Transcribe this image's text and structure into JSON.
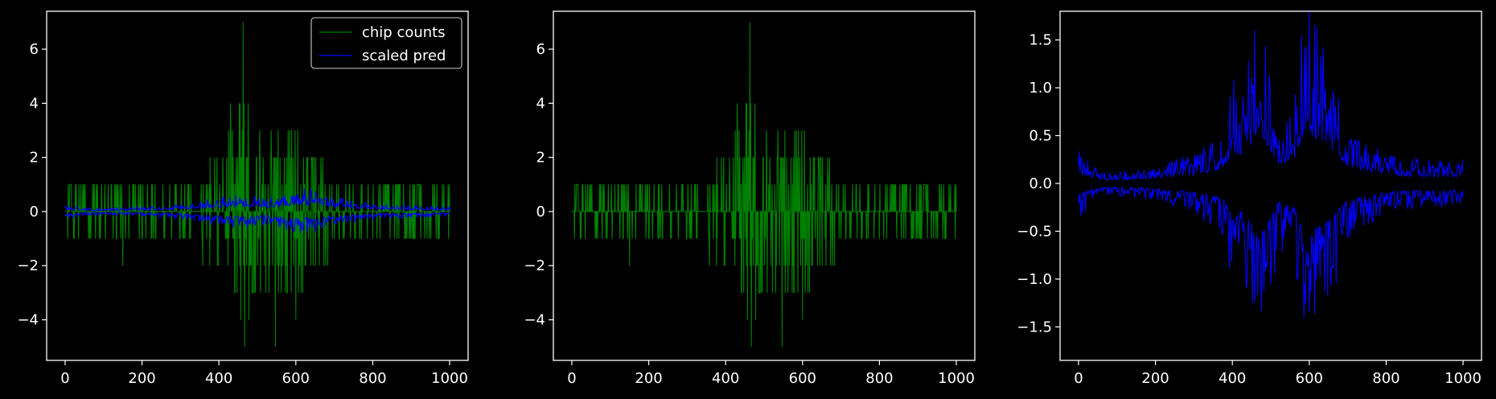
{
  "figure": {
    "background": "#000000",
    "axis_color": "#ffffff",
    "text_color": "#ffffff"
  },
  "chart_data": [
    {
      "type": "line",
      "panel": "left",
      "xlim": [
        -48,
        1048
      ],
      "ylim": [
        -5.5,
        7.4
      ],
      "xticks": [
        0,
        200,
        400,
        600,
        800,
        1000
      ],
      "yticks": [
        -4,
        -2,
        0,
        2,
        4,
        6
      ],
      "grid": false,
      "legend": {
        "placement": "top-right",
        "entries": [
          {
            "label": "chip counts",
            "color": "#008000"
          },
          {
            "label": "scaled pred",
            "color": "#0000ff"
          }
        ]
      },
      "series": [
        {
          "name": "chip counts",
          "color": "#008000",
          "style": "spiky-integer",
          "x_range": [
            0,
            1000
          ],
          "envelope_points": [
            0,
            100,
            200,
            300,
            380,
            430,
            460,
            500,
            550,
            600,
            650,
            700,
            800,
            900,
            1000
          ],
          "envelope_values": [
            1,
            1,
            1,
            1,
            1.5,
            3,
            4,
            3,
            3,
            3,
            2,
            1,
            1,
            1,
            1
          ],
          "spikes": [
            {
              "x": 463,
              "y": 7
            },
            {
              "x": 467,
              "y": -5
            },
            {
              "x": 547,
              "y": -5
            },
            {
              "x": 430,
              "y": 4
            },
            {
              "x": 600,
              "y": -4
            },
            {
              "x": 150,
              "y": -2
            }
          ]
        },
        {
          "name": "scaled pred",
          "color": "#0000ff",
          "style": "mirrored-noise",
          "x_range": [
            0,
            1000
          ],
          "envelope_points": [
            0,
            50,
            100,
            200,
            300,
            380,
            430,
            470,
            520,
            560,
            600,
            640,
            700,
            800,
            900,
            1000
          ],
          "envelope_values": [
            0.22,
            0.12,
            0.1,
            0.15,
            0.22,
            0.4,
            0.5,
            0.55,
            0.4,
            0.5,
            0.75,
            0.65,
            0.45,
            0.25,
            0.18,
            0.15
          ]
        }
      ]
    },
    {
      "type": "line",
      "panel": "middle",
      "xlim": [
        -48,
        1048
      ],
      "ylim": [
        -5.5,
        7.4
      ],
      "xticks": [
        0,
        200,
        400,
        600,
        800,
        1000
      ],
      "yticks": [
        -4,
        -2,
        0,
        2,
        4,
        6
      ],
      "grid": false,
      "series": [
        {
          "color": "#008000",
          "style": "spiky-integer",
          "x_range": [
            0,
            1000
          ],
          "envelope_points": [
            0,
            100,
            200,
            300,
            380,
            430,
            460,
            500,
            550,
            600,
            650,
            700,
            800,
            900,
            1000
          ],
          "envelope_values": [
            1,
            1,
            1,
            1,
            1.5,
            3,
            4,
            3,
            3,
            3,
            2,
            1,
            1,
            1,
            1
          ],
          "spikes": [
            {
              "x": 463,
              "y": 7
            },
            {
              "x": 467,
              "y": -5
            },
            {
              "x": 547,
              "y": -5
            },
            {
              "x": 430,
              "y": 4
            },
            {
              "x": 600,
              "y": -4
            },
            {
              "x": 150,
              "y": -2
            }
          ]
        }
      ]
    },
    {
      "type": "line",
      "panel": "right",
      "xlim": [
        -48,
        1048
      ],
      "ylim": [
        -1.85,
        1.8
      ],
      "xticks": [
        0,
        200,
        400,
        600,
        800,
        1000
      ],
      "yticks": [
        -1.5,
        -1.0,
        -0.5,
        0.0,
        0.5,
        1.0,
        1.5
      ],
      "grid": false,
      "series": [
        {
          "color": "#0000ff",
          "style": "mirrored-noise",
          "x_range": [
            0,
            1000
          ],
          "envelope_points": [
            0,
            50,
            100,
            200,
            300,
            380,
            400,
            430,
            470,
            520,
            560,
            590,
            620,
            650,
            700,
            800,
            900,
            1000
          ],
          "envelope_values": [
            0.3,
            0.12,
            0.1,
            0.15,
            0.25,
            0.45,
            0.9,
            0.8,
            1.6,
            0.55,
            0.7,
            1.6,
            1.3,
            1.1,
            0.5,
            0.25,
            0.2,
            0.2
          ]
        }
      ]
    }
  ]
}
